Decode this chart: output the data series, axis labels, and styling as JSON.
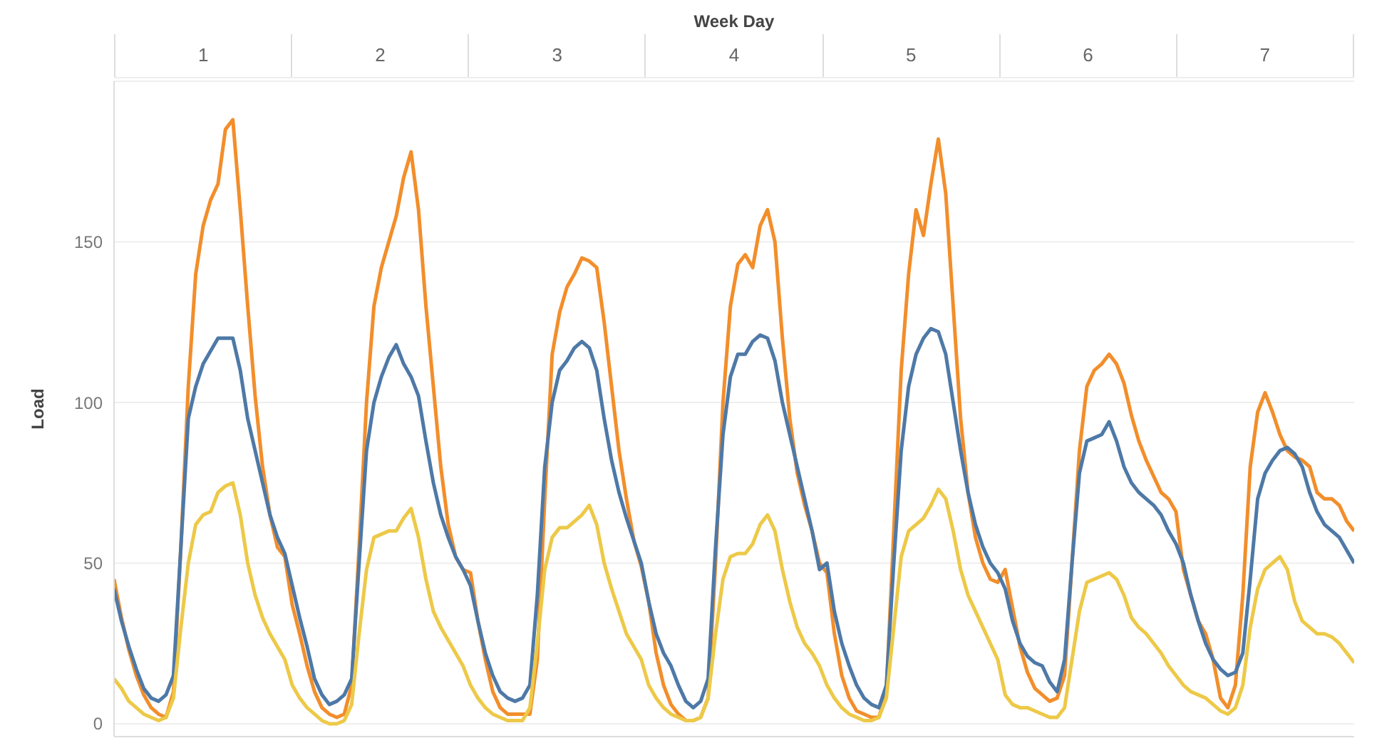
{
  "chart_data": {
    "type": "line",
    "title": "Week Day",
    "annotations": [
      "1",
      "2",
      "3",
      "4",
      "5",
      "6",
      "7"
    ],
    "ylabel": "Load",
    "ylim": [
      -4,
      200
    ],
    "yticks": [
      0,
      50,
      100,
      150
    ],
    "grid": "y",
    "tick_labels": "y",
    "categories": [
      null,
      null,
      null,
      null,
      null,
      null,
      null,
      null,
      null,
      null,
      null,
      null,
      null,
      null,
      null,
      null,
      null,
      null,
      null,
      null,
      null,
      null,
      null,
      null,
      null,
      null,
      null,
      null,
      null,
      null,
      null,
      null,
      null,
      null,
      null,
      null,
      null,
      null,
      null,
      null,
      null,
      null,
      null,
      null,
      null,
      null,
      null,
      null,
      null,
      null,
      null,
      null,
      null,
      null,
      null,
      null,
      null,
      null,
      null,
      null,
      null,
      null,
      null,
      null,
      null,
      null,
      null,
      null,
      null,
      null,
      null,
      null,
      null,
      null,
      null,
      null,
      null,
      null,
      null,
      null,
      null,
      null,
      null,
      null,
      null,
      null,
      null,
      null,
      null,
      null,
      null,
      null,
      null,
      null,
      null,
      null,
      null,
      null,
      null,
      null,
      null,
      null,
      null,
      null,
      null,
      null,
      null,
      null,
      null,
      null,
      null,
      null,
      null,
      null,
      null,
      null,
      null,
      null,
      null,
      null,
      null,
      null,
      null,
      null,
      null,
      null,
      null,
      null,
      null,
      null,
      null,
      null,
      null,
      null,
      null,
      null,
      null,
      null,
      null,
      null,
      null,
      null,
      null,
      null,
      null,
      null,
      null,
      null,
      null,
      null,
      null,
      null,
      null,
      null,
      null,
      null,
      null,
      null,
      null,
      null,
      null,
      null,
      null,
      null,
      null,
      null,
      null,
      null
    ],
    "series": [
      {
        "color": "#f28e2b",
        "values": [
          45,
          33,
          23,
          15,
          9,
          5,
          3,
          2,
          10,
          55,
          105,
          140,
          155,
          163,
          168,
          185,
          188,
          160,
          130,
          102,
          80,
          65,
          55,
          52,
          37,
          28,
          18,
          10,
          5,
          3,
          2,
          3,
          12,
          55,
          100,
          130,
          142,
          150,
          158,
          170,
          178,
          160,
          130,
          105,
          80,
          62,
          52,
          48,
          47,
          32,
          20,
          10,
          5,
          3,
          3,
          3,
          3,
          20,
          70,
          115,
          128,
          136,
          140,
          145,
          144,
          142,
          125,
          105,
          85,
          70,
          57,
          49,
          38,
          22,
          12,
          6,
          3,
          1,
          1,
          2,
          8,
          50,
          100,
          130,
          143,
          146,
          142,
          155,
          160,
          150,
          120,
          95,
          78,
          68,
          60,
          50,
          47,
          28,
          15,
          8,
          4,
          3,
          2,
          2,
          10,
          60,
          110,
          140,
          160,
          152,
          168,
          182,
          165,
          130,
          95,
          72,
          58,
          50,
          45,
          44,
          48,
          36,
          24,
          16,
          11,
          9,
          7,
          8,
          15,
          50,
          85,
          105,
          110,
          112,
          115,
          112,
          106,
          96,
          88,
          82,
          77,
          72,
          70,
          66,
          48,
          40,
          32,
          28,
          20,
          8,
          5,
          12,
          40,
          80,
          97,
          103,
          97,
          90,
          85,
          83,
          82,
          80,
          72,
          70,
          70,
          68,
          63,
          60
        ]
      },
      {
        "color": "#4e79a7",
        "values": [
          42,
          32,
          24,
          17,
          11,
          8,
          7,
          9,
          15,
          55,
          95,
          105,
          112,
          116,
          120,
          120,
          120,
          110,
          95,
          85,
          75,
          65,
          58,
          53,
          43,
          33,
          24,
          14,
          9,
          6,
          7,
          9,
          14,
          50,
          85,
          100,
          108,
          114,
          118,
          112,
          108,
          102,
          88,
          75,
          65,
          58,
          52,
          48,
          43,
          32,
          22,
          15,
          10,
          8,
          7,
          8,
          12,
          40,
          80,
          100,
          110,
          113,
          117,
          119,
          117,
          110,
          95,
          82,
          72,
          64,
          57,
          50,
          38,
          28,
          22,
          18,
          12,
          7,
          5,
          7,
          14,
          55,
          90,
          108,
          115,
          115,
          119,
          121,
          120,
          113,
          100,
          90,
          80,
          70,
          60,
          48,
          50,
          35,
          25,
          18,
          12,
          8,
          6,
          5,
          12,
          50,
          85,
          105,
          115,
          120,
          123,
          122,
          115,
          100,
          85,
          72,
          62,
          55,
          50,
          47,
          42,
          32,
          25,
          21,
          19,
          18,
          13,
          10,
          20,
          50,
          78,
          88,
          89,
          90,
          94,
          88,
          80,
          75,
          72,
          70,
          68,
          65,
          60,
          56,
          50,
          40,
          32,
          25,
          20,
          17,
          15,
          16,
          22,
          45,
          70,
          78,
          82,
          85,
          86,
          84,
          80,
          72,
          66,
          62,
          60,
          58,
          54,
          50
        ]
      },
      {
        "color": "#edc948",
        "values": [
          14,
          11,
          7,
          5,
          3,
          2,
          1,
          2,
          8,
          30,
          50,
          62,
          65,
          66,
          72,
          74,
          75,
          65,
          50,
          40,
          33,
          28,
          24,
          20,
          12,
          8,
          5,
          3,
          1,
          0,
          0,
          1,
          6,
          28,
          48,
          58,
          59,
          60,
          60,
          64,
          67,
          58,
          45,
          35,
          30,
          26,
          22,
          18,
          12,
          8,
          5,
          3,
          2,
          1,
          1,
          1,
          5,
          25,
          48,
          58,
          61,
          61,
          63,
          65,
          68,
          62,
          50,
          42,
          35,
          28,
          24,
          20,
          12,
          8,
          5,
          3,
          2,
          1,
          1,
          2,
          8,
          28,
          45,
          52,
          53,
          53,
          56,
          62,
          65,
          60,
          48,
          38,
          30,
          25,
          22,
          18,
          12,
          8,
          5,
          3,
          2,
          1,
          1,
          2,
          8,
          30,
          52,
          60,
          62,
          64,
          68,
          73,
          70,
          60,
          48,
          40,
          35,
          30,
          25,
          20,
          9,
          6,
          5,
          5,
          4,
          3,
          2,
          2,
          5,
          20,
          35,
          44,
          45,
          46,
          47,
          45,
          40,
          33,
          30,
          28,
          25,
          22,
          18,
          15,
          12,
          10,
          9,
          8,
          6,
          4,
          3,
          5,
          12,
          30,
          42,
          48,
          50,
          52,
          48,
          38,
          32,
          30,
          28,
          28,
          27,
          25,
          22,
          19
        ]
      }
    ]
  }
}
